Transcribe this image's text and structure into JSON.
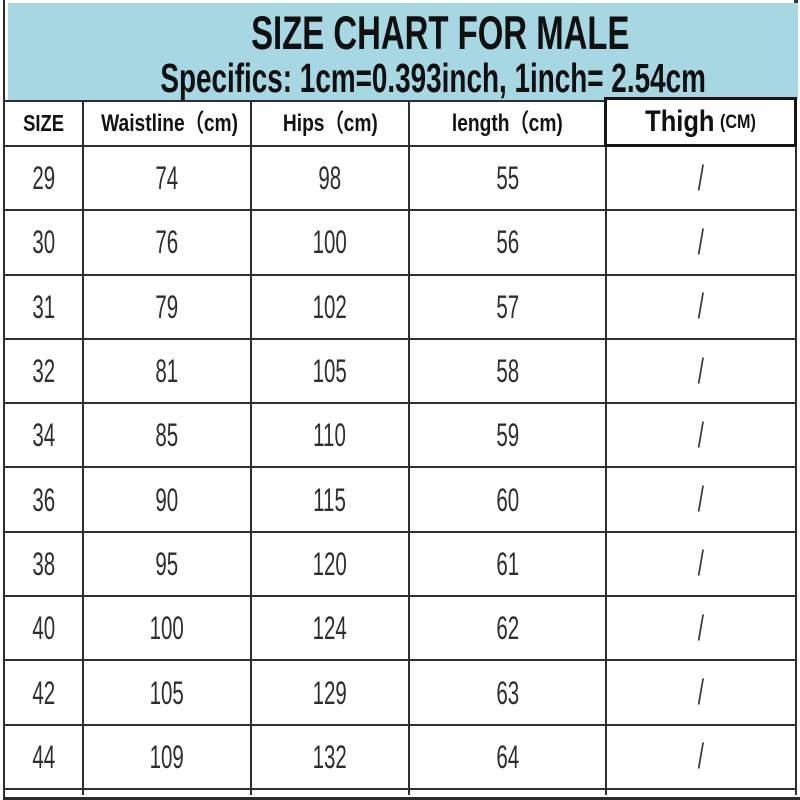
{
  "banner": {
    "title": "SIZE CHART FOR MALE",
    "subtitle": "Specifics: 1cm=0.393inch, 1inch= 2.54cm",
    "bg_color": "#a6d7e2"
  },
  "table": {
    "headers": {
      "size": "SIZE",
      "waistline": "Waistline（cm)",
      "hips": "Hips（cm)",
      "length": "length（cm)",
      "thigh": "Thigh",
      "thigh_unit": "(CM)"
    },
    "empty_value": "/"
  },
  "chart_data": {
    "type": "table",
    "title": "SIZE CHART FOR MALE",
    "subtitle": "Specifics: 1cm=0.393inch, 1inch= 2.54cm",
    "columns": [
      "SIZE",
      "Waistline（cm)",
      "Hips（cm)",
      "length（cm)",
      "Thigh(CM)"
    ],
    "rows": [
      [
        29,
        74,
        98,
        55,
        "/"
      ],
      [
        30,
        76,
        100,
        56,
        "/"
      ],
      [
        31,
        79,
        102,
        57,
        "/"
      ],
      [
        32,
        81,
        105,
        58,
        "/"
      ],
      [
        34,
        85,
        110,
        59,
        "/"
      ],
      [
        36,
        90,
        115,
        60,
        "/"
      ],
      [
        38,
        95,
        120,
        61,
        "/"
      ],
      [
        40,
        100,
        124,
        62,
        "/"
      ],
      [
        42,
        105,
        129,
        63,
        "/"
      ],
      [
        44,
        109,
        132,
        64,
        "/"
      ]
    ]
  }
}
